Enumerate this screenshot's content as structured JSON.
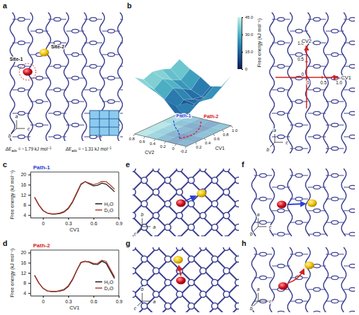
{
  "chart_data": [
    {
      "type": "line",
      "title": "Path-1",
      "x_label": "CV1",
      "y_label": "Free energy (kJ mol⁻¹)",
      "x": [
        -0.1,
        -0.05,
        0,
        0.05,
        0.1,
        0.15,
        0.2,
        0.25,
        0.3,
        0.35,
        0.4,
        0.45,
        0.5,
        0.55,
        0.6,
        0.65,
        0.7,
        0.75,
        0.8,
        0.85
      ],
      "series": [
        {
          "name": "H₂O",
          "color": "#1a1a1a",
          "values": [
            11,
            8,
            5.8,
            4.8,
            4.4,
            4.4,
            4.6,
            5.2,
            6.5,
            9,
            12.5,
            16,
            17.2,
            16.3,
            15.5,
            15.8,
            16.6,
            16.2,
            14.8,
            13.2
          ]
        },
        {
          "name": "D₂O",
          "color": "#b03a2e",
          "values": [
            11,
            8,
            5.8,
            4.8,
            4.5,
            4.5,
            4.8,
            5.4,
            6.8,
            9.3,
            12.8,
            16.3,
            17.2,
            16.6,
            16,
            16.5,
            17.3,
            17.2,
            15.8,
            14.2
          ]
        }
      ],
      "xlim": [
        -0.15,
        0.9
      ],
      "ylim": [
        3,
        21
      ],
      "xticks": [
        0,
        0.3,
        0.6,
        0.9
      ],
      "yticks": [
        4,
        8,
        12,
        16,
        20
      ],
      "legend": "lower right"
    },
    {
      "type": "line",
      "title": "Path-2",
      "x_label": "CV1",
      "y_label": "Free energy (kJ mol⁻¹)",
      "x": [
        -0.1,
        -0.05,
        0,
        0.05,
        0.1,
        0.15,
        0.2,
        0.25,
        0.3,
        0.35,
        0.4,
        0.45,
        0.5,
        0.55,
        0.6,
        0.65,
        0.7,
        0.75,
        0.8,
        0.85
      ],
      "series": [
        {
          "name": "H₂O",
          "color": "#1a1a1a",
          "values": [
            11,
            8,
            5.9,
            4.9,
            4.6,
            4.6,
            4.8,
            5.3,
            6.6,
            9.2,
            12.8,
            16,
            16.6,
            16.2,
            15.4,
            15.3,
            16.6,
            15.8,
            12.8,
            9.8
          ]
        },
        {
          "name": "D₂O",
          "color": "#b03a2e",
          "values": [
            11,
            8,
            5.9,
            4.9,
            4.7,
            4.7,
            5,
            5.5,
            6.9,
            9.5,
            13,
            16.2,
            16.5,
            16.4,
            15.7,
            15.8,
            17,
            16.5,
            13.5,
            10.4
          ]
        }
      ],
      "xlim": [
        -0.15,
        0.9
      ],
      "ylim": [
        3,
        21
      ],
      "xticks": [
        0,
        0.3,
        0.6,
        0.9
      ],
      "yticks": [
        4,
        8,
        12,
        16,
        20
      ],
      "legend": "lower right"
    }
  ],
  "figure": {
    "panel_labels": [
      "a",
      "b",
      "c",
      "d",
      "e",
      "f",
      "g",
      "h"
    ],
    "a": {
      "sites": [
        "Site-1",
        "Site-2"
      ],
      "energies": [
        {
          "symbol": "ΔE",
          "subscript": "ads",
          "text": " = −1.79 kJ mol",
          "superscript": "−1"
        },
        {
          "symbol": "ΔE",
          "subscript": "ads",
          "text": " = −1.31 kJ mol",
          "superscript": "−1"
        }
      ],
      "axes": [
        "a",
        "b",
        "c"
      ]
    },
    "b": {
      "paths": [
        "Path-1",
        "Path-2"
      ],
      "cv1_label": "CV1",
      "cv2_label": "CV2",
      "cv1lim": [
        0,
        1
      ],
      "cv2lim": [
        -0.2,
        0.8
      ],
      "cv1ticks": [
        0.2,
        0.4,
        0.6,
        0.8,
        {
          "value": 1,
          "label": "1.0"
        }
      ],
      "cv2ticks": [
        0.8,
        0.6,
        0.4,
        0.2,
        0,
        -0.2
      ],
      "surface": {
        "cv1": [
          0,
          0.2,
          0.4,
          0.6,
          0.8,
          1
        ],
        "cv2": [
          -0.2,
          0,
          0.2,
          0.4,
          0.6,
          0.8
        ],
        "values": [
          [
            30,
            22,
            28,
            35,
            30,
            38
          ],
          [
            24,
            6,
            17,
            16,
            14,
            22
          ],
          [
            27,
            9,
            19,
            15,
            13,
            20
          ],
          [
            34,
            21,
            29,
            24,
            18,
            28
          ],
          [
            39,
            30,
            37,
            31,
            26,
            34
          ],
          [
            45,
            38,
            42,
            40,
            36,
            42
          ]
        ]
      },
      "colorbar": {
        "label": "Free energy (kJ mol⁻¹)",
        "range": [
          0,
          45
        ],
        "ticks": [
          {
            "value": 45,
            "label": "45.0"
          },
          {
            "value": 30,
            "label": "30.0"
          },
          {
            "value": 15,
            "label": "15.0"
          },
          0
        ]
      },
      "cv_map": {
        "cv1_label": "CV1",
        "cv2_label": "CV2",
        "lim": [
          0,
          1
        ],
        "cv1_ticks": [
          0,
          0.5,
          {
            "value": 1,
            "label": "1.0"
          }
        ],
        "cv2_ticks": [
          0,
          0.5,
          {
            "value": 1,
            "label": "1.0"
          }
        ]
      },
      "axes": [
        "a",
        "b",
        "c"
      ]
    },
    "e": {
      "axes": [
        "b",
        "c",
        "a"
      ]
    },
    "f": {
      "axes": [
        "a",
        "b",
        "c"
      ]
    },
    "g": {
      "axes": [
        "b",
        "c",
        "a"
      ]
    },
    "h": {
      "axes": [
        "a",
        "b",
        "c"
      ]
    }
  }
}
